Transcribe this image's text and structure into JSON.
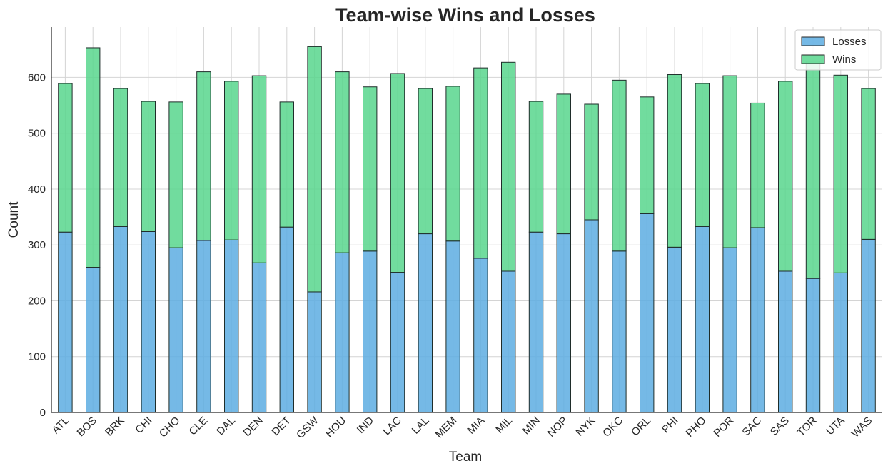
{
  "chart_data": {
    "type": "bar",
    "stacked": true,
    "title": "Team-wise Wins and Losses",
    "xlabel": "Team",
    "ylabel": "Count",
    "ylim": [
      0,
      690
    ],
    "yticks": [
      0,
      100,
      200,
      300,
      400,
      500,
      600
    ],
    "grid": true,
    "legend_position": "top-right",
    "categories": [
      "ATL",
      "BOS",
      "BRK",
      "CHI",
      "CHO",
      "CLE",
      "DAL",
      "DEN",
      "DET",
      "GSW",
      "HOU",
      "IND",
      "LAC",
      "LAL",
      "MEM",
      "MIA",
      "MIL",
      "MIN",
      "NOP",
      "NYK",
      "OKC",
      "ORL",
      "PHI",
      "PHO",
      "POR",
      "SAC",
      "SAS",
      "TOR",
      "UTA",
      "WAS"
    ],
    "series": [
      {
        "name": "Losses",
        "color": "#5dade2",
        "values": [
          323,
          260,
          333,
          324,
          295,
          308,
          309,
          268,
          332,
          216,
          286,
          289,
          251,
          320,
          307,
          276,
          253,
          323,
          320,
          345,
          289,
          356,
          296,
          333,
          295,
          331,
          253,
          240,
          250,
          310
        ]
      },
      {
        "name": "Wins",
        "color": "#58d68d",
        "values": [
          266,
          393,
          247,
          233,
          261,
          302,
          284,
          335,
          224,
          439,
          324,
          294,
          356,
          260,
          277,
          341,
          374,
          234,
          250,
          207,
          306,
          209,
          309,
          256,
          308,
          223,
          340,
          389,
          354,
          270
        ]
      }
    ]
  }
}
